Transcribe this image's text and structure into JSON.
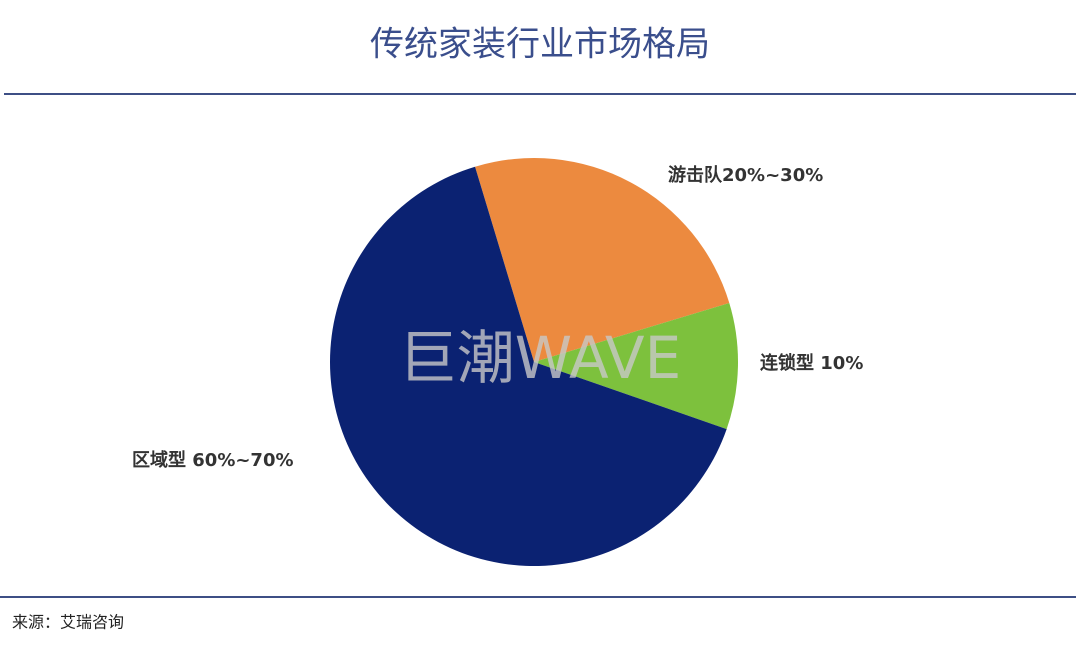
{
  "chart_data": {
    "type": "pie",
    "title": "传统家装行业市场格局",
    "categories": [
      "游击队20%~30%",
      "连锁型 10%",
      "区域型  60%~70%"
    ],
    "values": [
      25,
      10,
      65
    ],
    "colors": [
      "#ec8a3f",
      "#7dc13d",
      "#0b2272"
    ],
    "watermark": "巨潮WAVE",
    "source": "来源：艾瑞咨询"
  }
}
